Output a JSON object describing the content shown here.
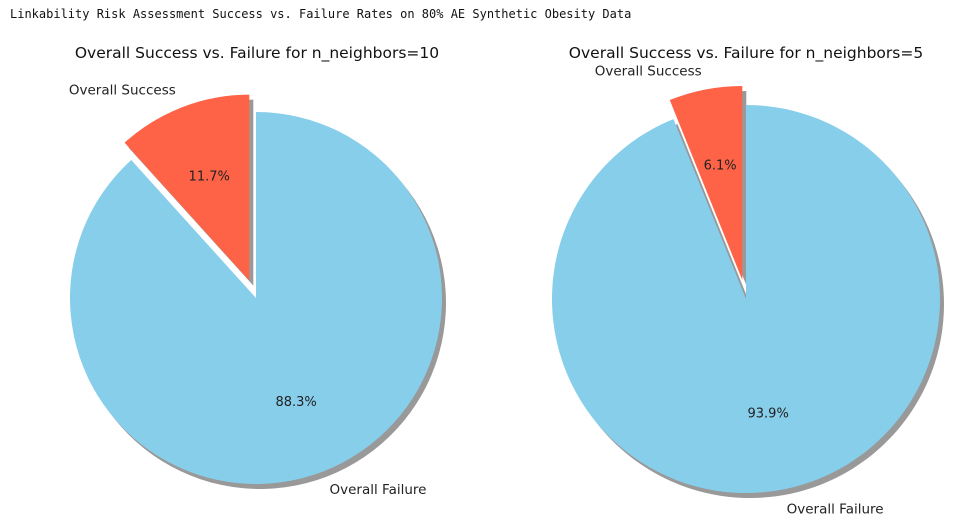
{
  "page": {
    "suptitle": "Linkability Risk Assessment Success vs. Failure Rates on 80% AE Synthetic Obesity Data"
  },
  "chart_data": [
    {
      "type": "pie",
      "title": "Overall Success vs. Failure for n_neighbors=10",
      "start_angle_deg": 90,
      "shadow": true,
      "slices": [
        {
          "label": "Overall Success",
          "value": 11.7,
          "pct_label": "11.7%",
          "color": "#FF6347",
          "explode": true
        },
        {
          "label": "Overall Failure",
          "value": 88.3,
          "pct_label": "88.3%",
          "color": "#87CEEB",
          "explode": false
        }
      ]
    },
    {
      "type": "pie",
      "title": "Overall Success vs. Failure for n_neighbors=5",
      "start_angle_deg": 90,
      "shadow": true,
      "slices": [
        {
          "label": "Overall Success",
          "value": 6.1,
          "pct_label": "6.1%",
          "color": "#FF6347",
          "explode": true
        },
        {
          "label": "Overall Failure",
          "value": 93.9,
          "pct_label": "93.9%",
          "color": "#87CEEB",
          "explode": false
        }
      ]
    }
  ]
}
